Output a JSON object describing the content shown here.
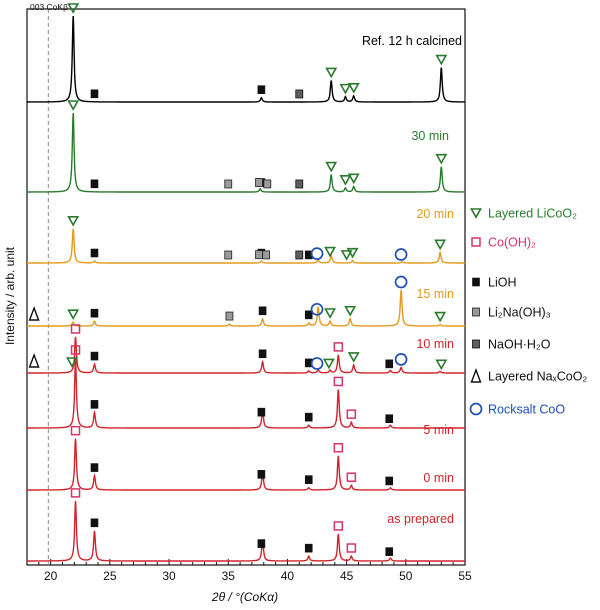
{
  "chart_data": {
    "type": "line",
    "xlabel": "2θ / °(CoKα)",
    "ylabel": "Intensity / arb. unit",
    "xlim": [
      18,
      55
    ],
    "xticks": [
      20,
      25,
      30,
      35,
      40,
      45,
      50,
      55
    ],
    "dashed_reference": {
      "label": "003 CoKβ",
      "x": 19.8
    },
    "series": [
      {
        "name": "Ref. 12 h calcined",
        "color": "#000000",
        "peaks": [
          [
            21.9,
            1.0
          ],
          [
            37.8,
            0.05
          ],
          [
            43.7,
            0.25
          ],
          [
            44.9,
            0.06
          ],
          [
            45.6,
            0.07
          ],
          [
            53.0,
            0.4
          ]
        ],
        "markers": [
          {
            "sym": "tri",
            "x": 21.9
          },
          {
            "sym": "tri",
            "x": 43.7
          },
          {
            "sym": "tri",
            "x": 44.9
          },
          {
            "sym": "tri",
            "x": 45.6
          },
          {
            "sym": "tri",
            "x": 53.0
          },
          {
            "sym": "lioh",
            "x": 23.7
          },
          {
            "sym": "lioh",
            "x": 37.8
          },
          {
            "sym": "naoh",
            "x": 41.0
          }
        ]
      },
      {
        "name": "30 min",
        "color": "#2a7a2e",
        "peaks": [
          [
            21.9,
            1.0
          ],
          [
            37.7,
            0.04
          ],
          [
            43.7,
            0.22
          ],
          [
            44.9,
            0.05
          ],
          [
            45.6,
            0.07
          ],
          [
            53.0,
            0.32
          ]
        ],
        "markers": [
          {
            "sym": "tri",
            "x": 21.9
          },
          {
            "sym": "tri",
            "x": 43.7
          },
          {
            "sym": "tri",
            "x": 44.9
          },
          {
            "sym": "tri",
            "x": 45.6
          },
          {
            "sym": "tri",
            "x": 53.0
          },
          {
            "sym": "lioh",
            "x": 23.7
          },
          {
            "sym": "lioh",
            "x": 37.8
          },
          {
            "sym": "li2na",
            "x": 35.0
          },
          {
            "sym": "li2na",
            "x": 37.6
          },
          {
            "sym": "li2na",
            "x": 38.3
          },
          {
            "sym": "naoh",
            "x": 41.0
          }
        ]
      },
      {
        "name": "20 min",
        "color": "#e39a1e",
        "peaks": [
          [
            21.9,
            0.9
          ],
          [
            23.7,
            0.05
          ],
          [
            37.8,
            0.05
          ],
          [
            42.6,
            0.08
          ],
          [
            43.7,
            0.2
          ],
          [
            45.5,
            0.06
          ],
          [
            49.7,
            0.03
          ],
          [
            52.9,
            0.28
          ]
        ],
        "markers": [
          {
            "sym": "tri",
            "x": 21.9
          },
          {
            "sym": "tri",
            "x": 43.6
          },
          {
            "sym": "tri",
            "x": 45.0
          },
          {
            "sym": "tri",
            "x": 45.5
          },
          {
            "sym": "tri",
            "x": 52.9
          },
          {
            "sym": "lioh",
            "x": 23.7
          },
          {
            "sym": "lioh",
            "x": 37.8
          },
          {
            "sym": "lioh",
            "x": 41.8
          },
          {
            "sym": "li2na",
            "x": 35.0
          },
          {
            "sym": "li2na",
            "x": 37.6
          },
          {
            "sym": "li2na",
            "x": 38.2
          },
          {
            "sym": "naoh",
            "x": 41.0
          },
          {
            "sym": "circ",
            "x": 42.5
          },
          {
            "sym": "circ",
            "x": 49.6
          }
        ]
      },
      {
        "name": "15 min",
        "color": "#e39a1e",
        "peaks": [
          [
            21.9,
            0.08
          ],
          [
            23.7,
            0.1
          ],
          [
            35.1,
            0.04
          ],
          [
            37.9,
            0.15
          ],
          [
            41.8,
            0.06
          ],
          [
            42.6,
            0.4
          ],
          [
            43.6,
            0.1
          ],
          [
            45.3,
            0.15
          ],
          [
            49.6,
            0.75
          ],
          [
            52.9,
            0.03
          ]
        ],
        "markers": [
          {
            "sym": "na",
            "x": 18.6
          },
          {
            "sym": "tri",
            "x": 21.9
          },
          {
            "sym": "tri",
            "x": 43.6
          },
          {
            "sym": "tri",
            "x": 45.3
          },
          {
            "sym": "tri",
            "x": 52.9
          },
          {
            "sym": "lioh",
            "x": 23.7
          },
          {
            "sym": "lioh",
            "x": 37.9
          },
          {
            "sym": "lioh",
            "x": 41.8
          },
          {
            "sym": "li2na",
            "x": 35.1
          },
          {
            "sym": "circ",
            "x": 42.5
          },
          {
            "sym": "circ",
            "x": 49.6
          }
        ]
      },
      {
        "name": "10 min",
        "color": "#d0242c",
        "peaks": [
          [
            22.1,
            0.9
          ],
          [
            23.7,
            0.22
          ],
          [
            37.9,
            0.28
          ],
          [
            41.8,
            0.05
          ],
          [
            42.6,
            0.08
          ],
          [
            43.6,
            0.07
          ],
          [
            44.3,
            0.45
          ],
          [
            45.6,
            0.2
          ],
          [
            48.7,
            0.06
          ],
          [
            49.6,
            0.14
          ],
          [
            52.9,
            0.04
          ]
        ],
        "markers": [
          {
            "sym": "na",
            "x": 18.6
          },
          {
            "sym": "tri",
            "x": 21.8
          },
          {
            "sym": "tri",
            "x": 43.5
          },
          {
            "sym": "tri",
            "x": 45.6
          },
          {
            "sym": "tri",
            "x": 53.0
          },
          {
            "sym": "sq",
            "x": 22.1
          },
          {
            "sym": "sq",
            "x": 44.3
          },
          {
            "sym": "lioh",
            "x": 23.7
          },
          {
            "sym": "lioh",
            "x": 37.9
          },
          {
            "sym": "lioh",
            "x": 41.8
          },
          {
            "sym": "lioh",
            "x": 48.6
          },
          {
            "sym": "circ",
            "x": 42.5
          },
          {
            "sym": "circ",
            "x": 49.6
          }
        ]
      },
      {
        "name": "5 min",
        "color": "#d0242c",
        "peaks": [
          [
            22.1,
            1.0
          ],
          [
            23.7,
            0.22
          ],
          [
            37.9,
            0.25
          ],
          [
            41.8,
            0.04
          ],
          [
            44.3,
            0.55
          ],
          [
            45.4,
            0.08
          ],
          [
            48.7,
            0.04
          ]
        ],
        "markers": [
          {
            "sym": "sq",
            "x": 22.1
          },
          {
            "sym": "sq",
            "x": 44.3
          },
          {
            "sym": "sq",
            "x": 45.4
          },
          {
            "sym": "lioh",
            "x": 23.7
          },
          {
            "sym": "lioh",
            "x": 37.8
          },
          {
            "sym": "lioh",
            "x": 41.8
          },
          {
            "sym": "lioh",
            "x": 48.6
          }
        ]
      },
      {
        "name": "0 min",
        "color": "#d0242c",
        "peaks": [
          [
            22.1,
            0.9
          ],
          [
            23.7,
            0.25
          ],
          [
            37.9,
            0.3
          ],
          [
            41.8,
            0.04
          ],
          [
            44.3,
            0.6
          ],
          [
            45.4,
            0.08
          ],
          [
            48.7,
            0.04
          ]
        ],
        "markers": [
          {
            "sym": "sq",
            "x": 22.1
          },
          {
            "sym": "sq",
            "x": 44.3
          },
          {
            "sym": "sq",
            "x": 45.4
          },
          {
            "sym": "lioh",
            "x": 23.7
          },
          {
            "sym": "lioh",
            "x": 37.8
          },
          {
            "sym": "lioh",
            "x": 41.8
          },
          {
            "sym": "lioh",
            "x": 48.6
          }
        ]
      },
      {
        "name": "as prepared",
        "color": "#d0242c",
        "peaks": [
          [
            22.1,
            1.0
          ],
          [
            23.7,
            0.5
          ],
          [
            37.9,
            0.35
          ],
          [
            41.8,
            0.08
          ],
          [
            44.3,
            0.45
          ],
          [
            45.4,
            0.08
          ],
          [
            48.7,
            0.05
          ]
        ],
        "markers": [
          {
            "sym": "sq",
            "x": 22.1
          },
          {
            "sym": "sq",
            "x": 44.3
          },
          {
            "sym": "sq",
            "x": 45.4
          },
          {
            "sym": "lioh",
            "x": 23.7
          },
          {
            "sym": "lioh",
            "x": 37.8
          },
          {
            "sym": "lioh",
            "x": 41.8
          },
          {
            "sym": "lioh",
            "x": 48.6
          }
        ]
      }
    ],
    "legend": [
      {
        "sym": "tri",
        "label": "Layered LiCoO₂",
        "color": "#2a7a2e"
      },
      {
        "sym": "sq",
        "label": "Co(OH)₂",
        "color": "#d6336c"
      },
      {
        "sym": "lioh",
        "label": "LiOH",
        "color": "#111111"
      },
      {
        "sym": "li2na",
        "label": "Li₂Na(OH)₃",
        "color": "#111111"
      },
      {
        "sym": "naoh",
        "label": "NaOH·H₂O",
        "color": "#111111"
      },
      {
        "sym": "na",
        "label": "Layered NaₓCoO₂",
        "color": "#111111"
      },
      {
        "sym": "circ",
        "label": "Rocksalt CoO",
        "color": "#1f4fb4"
      }
    ]
  }
}
